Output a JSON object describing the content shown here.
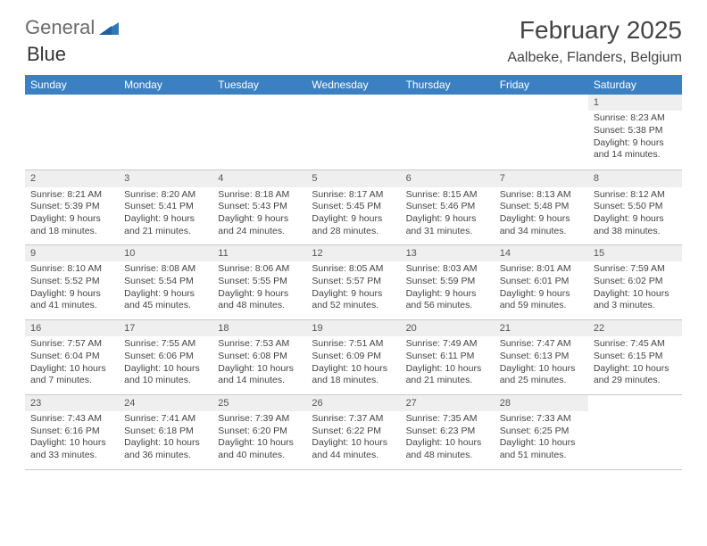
{
  "brand": {
    "word1": "General",
    "word2": "Blue",
    "word1_color": "#6a6a6a",
    "word2_color": "#2f78bb"
  },
  "title": "February 2025",
  "location": "Aalbeke, Flanders, Belgium",
  "calendar": {
    "type": "table",
    "header_bg": "#3a80c2",
    "header_text_color": "#ffffff",
    "daynum_bg": "#efefef",
    "border_color": "#c9c9c9",
    "background_color": "#ffffff",
    "text_color": "#444444",
    "header_fontsize": 12,
    "cell_fontsize": 10.5,
    "days": [
      "Sunday",
      "Monday",
      "Tuesday",
      "Wednesday",
      "Thursday",
      "Friday",
      "Saturday"
    ],
    "weeks": [
      {
        "nums": [
          "",
          "",
          "",
          "",
          "",
          "",
          "1"
        ],
        "cells": [
          {},
          {},
          {},
          {},
          {},
          {},
          {
            "sunrise": "Sunrise: 8:23 AM",
            "sunset": "Sunset: 5:38 PM",
            "d1": "Daylight: 9 hours",
            "d2": "and 14 minutes."
          }
        ]
      },
      {
        "nums": [
          "2",
          "3",
          "4",
          "5",
          "6",
          "7",
          "8"
        ],
        "cells": [
          {
            "sunrise": "Sunrise: 8:21 AM",
            "sunset": "Sunset: 5:39 PM",
            "d1": "Daylight: 9 hours",
            "d2": "and 18 minutes."
          },
          {
            "sunrise": "Sunrise: 8:20 AM",
            "sunset": "Sunset: 5:41 PM",
            "d1": "Daylight: 9 hours",
            "d2": "and 21 minutes."
          },
          {
            "sunrise": "Sunrise: 8:18 AM",
            "sunset": "Sunset: 5:43 PM",
            "d1": "Daylight: 9 hours",
            "d2": "and 24 minutes."
          },
          {
            "sunrise": "Sunrise: 8:17 AM",
            "sunset": "Sunset: 5:45 PM",
            "d1": "Daylight: 9 hours",
            "d2": "and 28 minutes."
          },
          {
            "sunrise": "Sunrise: 8:15 AM",
            "sunset": "Sunset: 5:46 PM",
            "d1": "Daylight: 9 hours",
            "d2": "and 31 minutes."
          },
          {
            "sunrise": "Sunrise: 8:13 AM",
            "sunset": "Sunset: 5:48 PM",
            "d1": "Daylight: 9 hours",
            "d2": "and 34 minutes."
          },
          {
            "sunrise": "Sunrise: 8:12 AM",
            "sunset": "Sunset: 5:50 PM",
            "d1": "Daylight: 9 hours",
            "d2": "and 38 minutes."
          }
        ]
      },
      {
        "nums": [
          "9",
          "10",
          "11",
          "12",
          "13",
          "14",
          "15"
        ],
        "cells": [
          {
            "sunrise": "Sunrise: 8:10 AM",
            "sunset": "Sunset: 5:52 PM",
            "d1": "Daylight: 9 hours",
            "d2": "and 41 minutes."
          },
          {
            "sunrise": "Sunrise: 8:08 AM",
            "sunset": "Sunset: 5:54 PM",
            "d1": "Daylight: 9 hours",
            "d2": "and 45 minutes."
          },
          {
            "sunrise": "Sunrise: 8:06 AM",
            "sunset": "Sunset: 5:55 PM",
            "d1": "Daylight: 9 hours",
            "d2": "and 48 minutes."
          },
          {
            "sunrise": "Sunrise: 8:05 AM",
            "sunset": "Sunset: 5:57 PM",
            "d1": "Daylight: 9 hours",
            "d2": "and 52 minutes."
          },
          {
            "sunrise": "Sunrise: 8:03 AM",
            "sunset": "Sunset: 5:59 PM",
            "d1": "Daylight: 9 hours",
            "d2": "and 56 minutes."
          },
          {
            "sunrise": "Sunrise: 8:01 AM",
            "sunset": "Sunset: 6:01 PM",
            "d1": "Daylight: 9 hours",
            "d2": "and 59 minutes."
          },
          {
            "sunrise": "Sunrise: 7:59 AM",
            "sunset": "Sunset: 6:02 PM",
            "d1": "Daylight: 10 hours",
            "d2": "and 3 minutes."
          }
        ]
      },
      {
        "nums": [
          "16",
          "17",
          "18",
          "19",
          "20",
          "21",
          "22"
        ],
        "cells": [
          {
            "sunrise": "Sunrise: 7:57 AM",
            "sunset": "Sunset: 6:04 PM",
            "d1": "Daylight: 10 hours",
            "d2": "and 7 minutes."
          },
          {
            "sunrise": "Sunrise: 7:55 AM",
            "sunset": "Sunset: 6:06 PM",
            "d1": "Daylight: 10 hours",
            "d2": "and 10 minutes."
          },
          {
            "sunrise": "Sunrise: 7:53 AM",
            "sunset": "Sunset: 6:08 PM",
            "d1": "Daylight: 10 hours",
            "d2": "and 14 minutes."
          },
          {
            "sunrise": "Sunrise: 7:51 AM",
            "sunset": "Sunset: 6:09 PM",
            "d1": "Daylight: 10 hours",
            "d2": "and 18 minutes."
          },
          {
            "sunrise": "Sunrise: 7:49 AM",
            "sunset": "Sunset: 6:11 PM",
            "d1": "Daylight: 10 hours",
            "d2": "and 21 minutes."
          },
          {
            "sunrise": "Sunrise: 7:47 AM",
            "sunset": "Sunset: 6:13 PM",
            "d1": "Daylight: 10 hours",
            "d2": "and 25 minutes."
          },
          {
            "sunrise": "Sunrise: 7:45 AM",
            "sunset": "Sunset: 6:15 PM",
            "d1": "Daylight: 10 hours",
            "d2": "and 29 minutes."
          }
        ]
      },
      {
        "nums": [
          "23",
          "24",
          "25",
          "26",
          "27",
          "28",
          ""
        ],
        "cells": [
          {
            "sunrise": "Sunrise: 7:43 AM",
            "sunset": "Sunset: 6:16 PM",
            "d1": "Daylight: 10 hours",
            "d2": "and 33 minutes."
          },
          {
            "sunrise": "Sunrise: 7:41 AM",
            "sunset": "Sunset: 6:18 PM",
            "d1": "Daylight: 10 hours",
            "d2": "and 36 minutes."
          },
          {
            "sunrise": "Sunrise: 7:39 AM",
            "sunset": "Sunset: 6:20 PM",
            "d1": "Daylight: 10 hours",
            "d2": "and 40 minutes."
          },
          {
            "sunrise": "Sunrise: 7:37 AM",
            "sunset": "Sunset: 6:22 PM",
            "d1": "Daylight: 10 hours",
            "d2": "and 44 minutes."
          },
          {
            "sunrise": "Sunrise: 7:35 AM",
            "sunset": "Sunset: 6:23 PM",
            "d1": "Daylight: 10 hours",
            "d2": "and 48 minutes."
          },
          {
            "sunrise": "Sunrise: 7:33 AM",
            "sunset": "Sunset: 6:25 PM",
            "d1": "Daylight: 10 hours",
            "d2": "and 51 minutes."
          },
          {}
        ]
      }
    ]
  }
}
